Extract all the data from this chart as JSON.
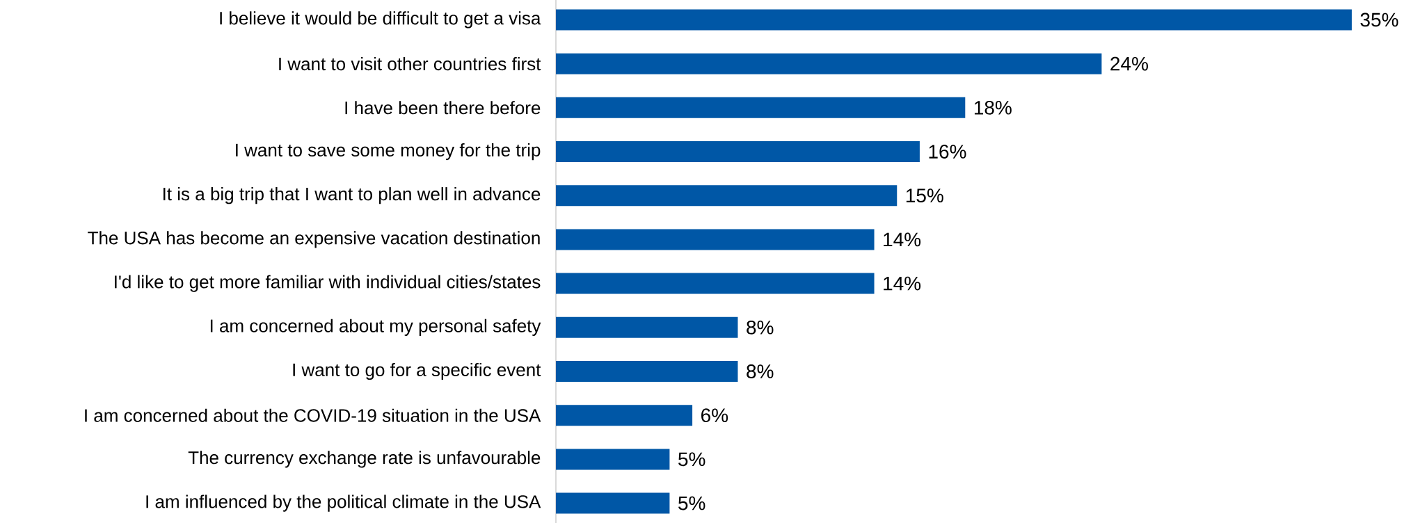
{
  "chart_data": {
    "type": "bar",
    "orientation": "horizontal",
    "categories": [
      "I believe it would be difficult to get a visa",
      "I want to visit other countries first",
      "I have been there before",
      "I want to save some money for the trip",
      "It is a big trip that I want to plan well in advance",
      "The USA has become an expensive vacation destination",
      "I'd like to get more familiar with individual cities/states",
      "I am concerned about my personal safety",
      "I want to go for a specific event",
      "I am concerned about the COVID-19 situation in the USA",
      "The currency exchange rate is unfavourable",
      "I am influenced by the political climate in the USA"
    ],
    "values": [
      35,
      24,
      18,
      16,
      15,
      14,
      14,
      8,
      8,
      6,
      5,
      5
    ],
    "value_labels": [
      "35%",
      "24%",
      "18%",
      "16%",
      "15%",
      "14%",
      "14%",
      "8%",
      "8%",
      "6%",
      "5%",
      "5%"
    ],
    "color": "#0057a6"
  }
}
